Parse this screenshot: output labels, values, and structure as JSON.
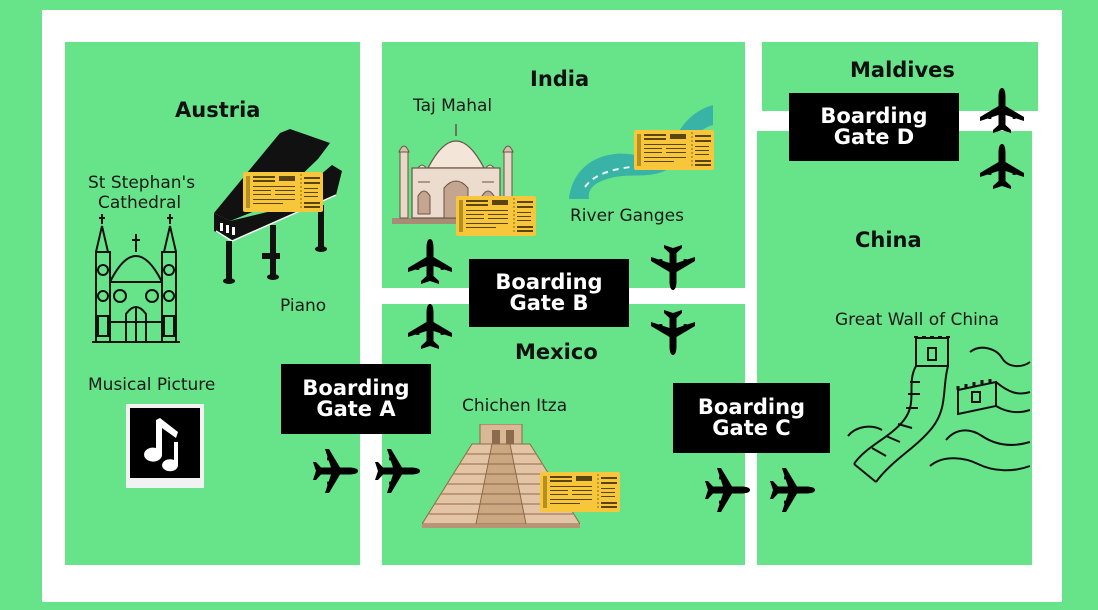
{
  "regions": {
    "austria": {
      "name": "Austria",
      "landmarks": [
        "St Stephan's",
        "Cathedral",
        "Piano",
        "Musical Picture"
      ]
    },
    "india": {
      "name": "India",
      "landmarks": [
        "Taj Mahal",
        "River Ganges"
      ]
    },
    "mexico": {
      "name": "Mexico",
      "landmarks": [
        "Chichen Itza"
      ]
    },
    "maldives": {
      "name": "Maldives"
    },
    "china": {
      "name": "China",
      "landmarks": [
        "Great Wall of China"
      ]
    }
  },
  "gates": {
    "a": {
      "line1": "Boarding",
      "line2": "Gate A"
    },
    "b": {
      "line1": "Boarding",
      "line2": "Gate B"
    },
    "c": {
      "line1": "Boarding",
      "line2": "Gate C"
    },
    "d": {
      "line1": "Boarding",
      "line2": "Gate D"
    }
  },
  "ticket": {
    "airline_line1": "NORTHERN",
    "airline_line2": "AIRLINES",
    "code": "B64"
  },
  "colors": {
    "green": "#67e389",
    "white": "#ffffff",
    "gate": "#000000",
    "ticket": "#f7c63b",
    "river": "#39b3a6"
  },
  "icons": [
    "airplane-icon",
    "piano-icon",
    "cathedral-icon",
    "taj-mahal-icon",
    "river-icon",
    "pyramid-icon",
    "great-wall-icon",
    "music-note-icon",
    "ticket-icon"
  ]
}
